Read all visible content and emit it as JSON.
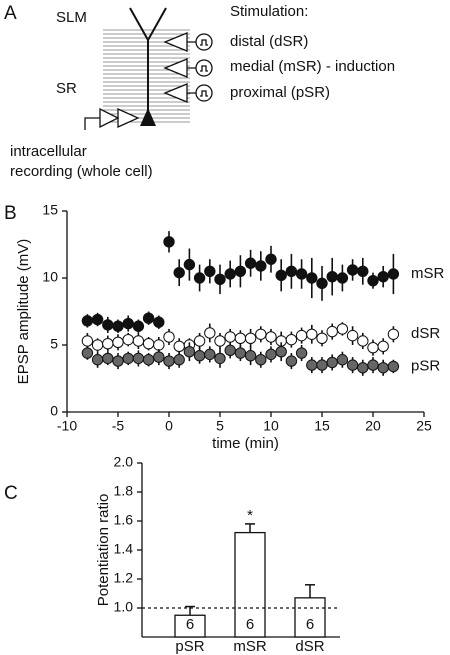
{
  "panel_labels": [
    "A",
    "B",
    "C"
  ],
  "diagram": {
    "layers": [
      "SLM",
      "SR"
    ],
    "stimulation_title": "Stimulation:",
    "stimulation": [
      "distal (dSR)",
      "medial (mSR) - induction",
      "proximal (pSR)"
    ],
    "recording": [
      "intracellular",
      "recording (whole cell)"
    ]
  },
  "chart_data": [
    {
      "type": "scatter",
      "xlabel": "time (min)",
      "ylabel": "EPSP amplitude (mV)",
      "xlim": [
        -10,
        25
      ],
      "xticks": [
        -10,
        -5,
        0,
        5,
        10,
        15,
        20,
        25
      ],
      "ylim": [
        0,
        15
      ],
      "yticks": [
        0,
        5,
        10,
        15
      ],
      "x": [
        -8,
        -7,
        -6,
        -5,
        -4,
        -3,
        -2,
        -1,
        0,
        1,
        2,
        3,
        4,
        5,
        6,
        7,
        8,
        9,
        10,
        11,
        12,
        13,
        14,
        15,
        16,
        17,
        18,
        19,
        20,
        21,
        22
      ],
      "series": [
        {
          "name": "mSR",
          "color": "#111111",
          "values": [
            6.8,
            6.9,
            6.5,
            6.4,
            6.6,
            6.4,
            7.0,
            6.7,
            12.7,
            10.4,
            11.0,
            10.0,
            10.5,
            9.9,
            10.3,
            10.5,
            11.1,
            10.9,
            11.4,
            10.2,
            10.5,
            10.3,
            10.0,
            9.6,
            10.1,
            10.0,
            10.6,
            10.5,
            9.8,
            10.1,
            10.3
          ],
          "errors": [
            0.5,
            0.5,
            0.6,
            0.5,
            0.6,
            0.5,
            0.5,
            0.5,
            0.8,
            1.0,
            1.2,
            1.0,
            0.9,
            1.1,
            1.0,
            1.2,
            1.0,
            1.1,
            1.0,
            1.2,
            1.3,
            1.1,
            1.5,
            1.3,
            1.4,
            1.0,
            0.8,
            1.0,
            0.6,
            0.8,
            1.5
          ]
        },
        {
          "name": "dSR",
          "color": "#ffffff",
          "values": [
            5.3,
            5.0,
            5.1,
            5.2,
            5.4,
            5.3,
            5.1,
            5.0,
            5.6,
            4.9,
            5.0,
            5.3,
            5.9,
            5.3,
            5.6,
            5.5,
            5.5,
            5.8,
            5.6,
            5.3,
            5.4,
            5.7,
            5.8,
            5.5,
            6.0,
            6.2,
            5.7,
            5.3,
            4.8,
            4.9,
            5.8
          ],
          "errors": [
            0.6,
            0.5,
            0.6,
            0.6,
            0.5,
            0.6,
            0.5,
            0.6,
            0.6,
            0.6,
            0.5,
            0.6,
            0.7,
            0.6,
            0.6,
            0.6,
            0.7,
            0.6,
            0.6,
            0.7,
            0.6,
            0.6,
            0.7,
            0.6,
            0.6,
            0.5,
            0.7,
            0.6,
            0.6,
            0.6,
            0.6
          ]
        },
        {
          "name": "pSR",
          "color": "#666666",
          "values": [
            4.4,
            3.9,
            4.0,
            3.8,
            4.0,
            4.0,
            3.9,
            4.1,
            3.8,
            3.9,
            4.5,
            4.2,
            4.3,
            4.0,
            4.6,
            4.4,
            4.2,
            3.9,
            4.3,
            4.5,
            3.8,
            4.4,
            3.5,
            3.5,
            3.7,
            3.9,
            3.5,
            3.3,
            3.5,
            3.3,
            3.4
          ],
          "errors": [
            0.5,
            0.6,
            0.5,
            0.6,
            0.5,
            0.6,
            0.5,
            0.6,
            0.6,
            0.6,
            0.7,
            0.6,
            0.6,
            0.7,
            0.6,
            0.6,
            0.7,
            0.6,
            0.6,
            0.7,
            0.6,
            0.6,
            0.6,
            0.6,
            0.6,
            0.6,
            0.6,
            0.6,
            0.6,
            0.6,
            0.5
          ]
        }
      ]
    },
    {
      "type": "bar",
      "ylabel": "Potentiation ratio",
      "categories": [
        "pSR",
        "mSR",
        "dSR"
      ],
      "values": [
        0.95,
        1.52,
        1.07
      ],
      "errors": [
        0.06,
        0.06,
        0.09
      ],
      "n": [
        6,
        6,
        6
      ],
      "significance": [
        null,
        "*",
        null
      ],
      "color": "#ffffff",
      "hline": 1.0,
      "ylim": [
        0.8,
        2.0
      ],
      "yticks": [
        {
          "value": 1.0,
          "label": "1.0"
        },
        1.2,
        1.4,
        1.6,
        1.8,
        {
          "value": 2.0,
          "label": "2.0"
        }
      ]
    }
  ]
}
